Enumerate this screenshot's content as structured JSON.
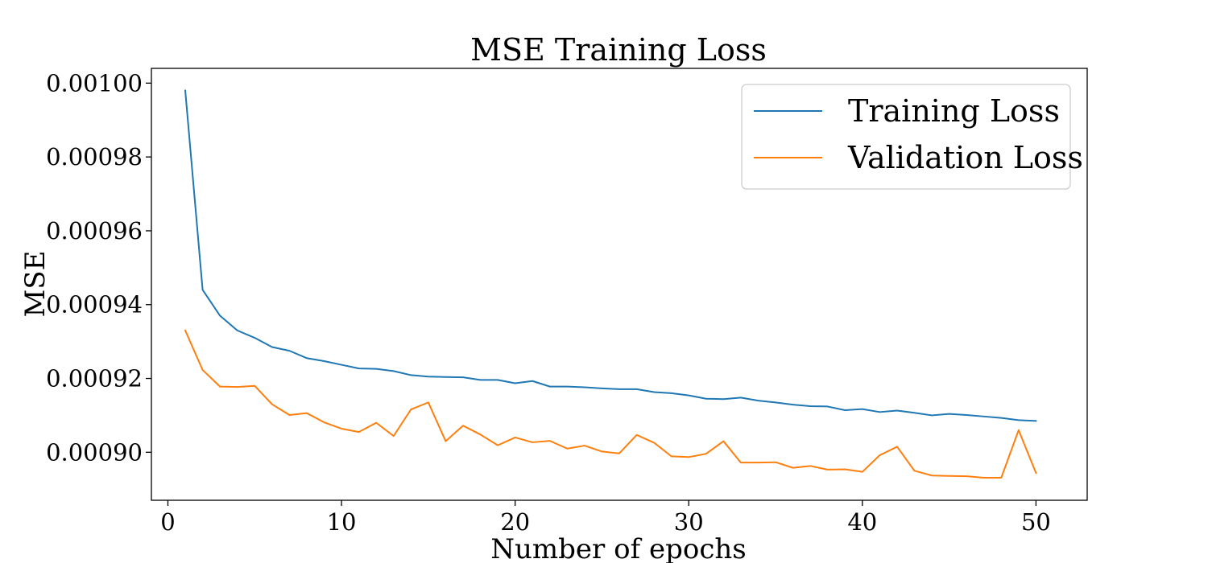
{
  "chart_data": {
    "type": "line",
    "title": "MSE Training Loss",
    "xlabel": "Number of epochs",
    "ylabel": "MSE",
    "xlim": [
      -0.95,
      52.95
    ],
    "ylim": [
      0.000887,
      0.001004
    ],
    "xticks": [
      0,
      10,
      20,
      30,
      40,
      50
    ],
    "xtick_labels": [
      "0",
      "10",
      "20",
      "30",
      "40",
      "50"
    ],
    "yticks": [
      0.0009,
      0.00092,
      0.00094,
      0.00096,
      0.00098,
      0.001
    ],
    "ytick_labels": [
      "0.00090",
      "0.00092",
      "0.00094",
      "0.00096",
      "0.00098",
      "0.00100"
    ],
    "grid": false,
    "legend_position": "top-right",
    "x": [
      1,
      2,
      3,
      4,
      5,
      6,
      7,
      8,
      9,
      10,
      11,
      12,
      13,
      14,
      15,
      16,
      17,
      18,
      19,
      20,
      21,
      22,
      23,
      24,
      25,
      26,
      27,
      28,
      29,
      30,
      31,
      32,
      33,
      34,
      35,
      36,
      37,
      38,
      39,
      40,
      41,
      42,
      43,
      44,
      45,
      46,
      47,
      48,
      49,
      50
    ],
    "series": [
      {
        "name": "Training Loss",
        "color": "#1f77b4",
        "values": [
          0.000998,
          0.000944,
          0.000937,
          0.000933,
          0.000931,
          0.0009285,
          0.0009275,
          0.0009255,
          0.0009247,
          0.0009237,
          0.0009227,
          0.0009226,
          0.000922,
          0.0009209,
          0.0009205,
          0.0009204,
          0.0009203,
          0.0009196,
          0.0009196,
          0.0009187,
          0.0009193,
          0.0009178,
          0.0009178,
          0.0009176,
          0.0009173,
          0.0009171,
          0.0009171,
          0.0009163,
          0.000916,
          0.0009154,
          0.0009145,
          0.0009144,
          0.0009148,
          0.000914,
          0.0009135,
          0.0009129,
          0.0009125,
          0.0009124,
          0.0009114,
          0.0009117,
          0.0009109,
          0.0009113,
          0.0009107,
          0.00091,
          0.0009104,
          0.0009101,
          0.0009097,
          0.0009093,
          0.0009087,
          0.0009085
        ]
      },
      {
        "name": "Validation Loss",
        "color": "#ff7f0e",
        "values": [
          0.000933,
          0.0009223,
          0.0009178,
          0.0009177,
          0.000918,
          0.000913,
          0.0009101,
          0.0009106,
          0.0009081,
          0.0009064,
          0.0009055,
          0.000908,
          0.0009044,
          0.0009116,
          0.0009135,
          0.000903,
          0.0009072,
          0.0009048,
          0.0009019,
          0.000904,
          0.0009027,
          0.0009031,
          0.000901,
          0.0009018,
          0.0009002,
          0.0008997,
          0.0009047,
          0.0009026,
          0.0008989,
          0.0008987,
          0.0008996,
          0.000903,
          0.0008972,
          0.0008972,
          0.0008973,
          0.0008958,
          0.0008963,
          0.0008953,
          0.0008954,
          0.0008947,
          0.0008992,
          0.0009015,
          0.000895,
          0.0008937,
          0.0008936,
          0.0008935,
          0.0008931,
          0.0008931,
          0.000906,
          0.0008944
        ]
      }
    ]
  }
}
